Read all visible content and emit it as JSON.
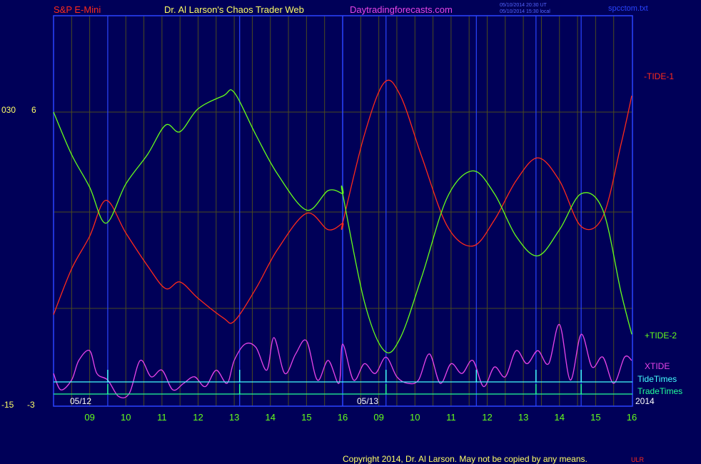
{
  "header": {
    "symbol": "S&P E-Mini",
    "site": "Dr. Al Larson's Chaos Trader Web",
    "url": "Daytradingforecasts.com",
    "ut_stamp": "05/10/2014 20:30 UT",
    "local_stamp": "05/10/2014 15:30 local",
    "file": "spcctom.txt"
  },
  "footer": {
    "copyright": "Copyright 2014, Dr. Al Larson. May not be copied by any means.",
    "mark": "ULR"
  },
  "colors": {
    "background": "#000058",
    "frame": "#2a44ff",
    "tide1": "#ff2a1a",
    "tide2": "#66ff1a",
    "xtide": "#e844e8",
    "tide_times": "#44ffff",
    "trade_times": "#22ff99"
  },
  "chart_data": {
    "type": "line",
    "x_unit": "hour",
    "x_range": [
      8,
      16
    ],
    "day_labels": [
      "05/12",
      "05/13"
    ],
    "year_label": "2014",
    "hour_ticks": [
      {
        "day": "05/12",
        "labels": [
          "09",
          "10",
          "11",
          "12",
          "13",
          "14",
          "15",
          "16"
        ]
      },
      {
        "day": "05/13",
        "labels": [
          "09",
          "10",
          "11",
          "12",
          "13",
          "14",
          "15",
          "16"
        ]
      }
    ],
    "left_axis": {
      "top_label_a": "030",
      "top_label_b": "6",
      "bottom_label_a": "-15",
      "bottom_label_b": "-3"
    },
    "ylim": [
      -3,
      6
    ],
    "series": [
      {
        "name": "-TIDE-1",
        "values": [
          {
            "day": "05/12",
            "x": 8.0,
            "y": -0.2
          },
          {
            "day": "05/12",
            "x": 8.5,
            "y": 1.2
          },
          {
            "day": "05/12",
            "x": 9.0,
            "y": 2.2
          },
          {
            "day": "05/12",
            "x": 9.45,
            "y": 3.3
          },
          {
            "day": "05/12",
            "x": 10.0,
            "y": 2.3
          },
          {
            "day": "05/12",
            "x": 10.6,
            "y": 1.3
          },
          {
            "day": "05/12",
            "x": 11.1,
            "y": 0.6
          },
          {
            "day": "05/12",
            "x": 11.5,
            "y": 0.8
          },
          {
            "day": "05/12",
            "x": 12.0,
            "y": 0.3
          },
          {
            "day": "05/12",
            "x": 12.7,
            "y": -0.3
          },
          {
            "day": "05/12",
            "x": 13.0,
            "y": -0.4
          },
          {
            "day": "05/12",
            "x": 13.6,
            "y": 0.6
          },
          {
            "day": "05/12",
            "x": 14.2,
            "y": 1.8
          },
          {
            "day": "05/12",
            "x": 15.0,
            "y": 2.9
          },
          {
            "day": "05/12",
            "x": 15.6,
            "y": 2.4
          },
          {
            "day": "05/12",
            "x": 16.0,
            "y": 2.6
          },
          {
            "day": "05/13",
            "x": 8.0,
            "y": 2.6
          },
          {
            "day": "05/13",
            "x": 8.6,
            "y": 5.3
          },
          {
            "day": "05/13",
            "x": 9.15,
            "y": 6.9
          },
          {
            "day": "05/13",
            "x": 9.6,
            "y": 6.5
          },
          {
            "day": "05/13",
            "x": 10.2,
            "y": 4.6
          },
          {
            "day": "05/13",
            "x": 10.9,
            "y": 2.5
          },
          {
            "day": "05/13",
            "x": 11.6,
            "y": 1.9
          },
          {
            "day": "05/13",
            "x": 12.2,
            "y": 2.7
          },
          {
            "day": "05/13",
            "x": 12.8,
            "y": 3.9
          },
          {
            "day": "05/13",
            "x": 13.4,
            "y": 4.6
          },
          {
            "day": "05/13",
            "x": 14.0,
            "y": 3.9
          },
          {
            "day": "05/13",
            "x": 14.6,
            "y": 2.5
          },
          {
            "day": "05/13",
            "x": 15.2,
            "y": 2.8
          },
          {
            "day": "05/13",
            "x": 15.7,
            "y": 5.0
          },
          {
            "day": "05/13",
            "x": 16.0,
            "y": 6.5
          }
        ]
      },
      {
        "name": "+TIDE-2",
        "values": [
          {
            "day": "05/12",
            "x": 8.0,
            "y": 6.0
          },
          {
            "day": "05/12",
            "x": 8.5,
            "y": 4.7
          },
          {
            "day": "05/12",
            "x": 9.0,
            "y": 3.7
          },
          {
            "day": "05/12",
            "x": 9.45,
            "y": 2.6
          },
          {
            "day": "05/12",
            "x": 10.0,
            "y": 3.8
          },
          {
            "day": "05/12",
            "x": 10.6,
            "y": 4.7
          },
          {
            "day": "05/12",
            "x": 11.1,
            "y": 5.6
          },
          {
            "day": "05/12",
            "x": 11.5,
            "y": 5.4
          },
          {
            "day": "05/12",
            "x": 12.0,
            "y": 6.1
          },
          {
            "day": "05/12",
            "x": 12.7,
            "y": 6.5
          },
          {
            "day": "05/12",
            "x": 13.0,
            "y": 6.6
          },
          {
            "day": "05/12",
            "x": 13.6,
            "y": 5.3
          },
          {
            "day": "05/12",
            "x": 14.2,
            "y": 4.1
          },
          {
            "day": "05/12",
            "x": 15.0,
            "y": 3.0
          },
          {
            "day": "05/12",
            "x": 15.6,
            "y": 3.6
          },
          {
            "day": "05/12",
            "x": 16.0,
            "y": 3.5
          },
          {
            "day": "05/13",
            "x": 8.0,
            "y": 3.5
          },
          {
            "day": "05/13",
            "x": 8.6,
            "y": 0.2
          },
          {
            "day": "05/13",
            "x": 9.15,
            "y": -1.3
          },
          {
            "day": "05/13",
            "x": 9.6,
            "y": -0.9
          },
          {
            "day": "05/13",
            "x": 10.2,
            "y": 1.0
          },
          {
            "day": "05/13",
            "x": 10.9,
            "y": 3.4
          },
          {
            "day": "05/13",
            "x": 11.6,
            "y": 4.2
          },
          {
            "day": "05/13",
            "x": 12.2,
            "y": 3.5
          },
          {
            "day": "05/13",
            "x": 12.8,
            "y": 2.2
          },
          {
            "day": "05/13",
            "x": 13.4,
            "y": 1.6
          },
          {
            "day": "05/13",
            "x": 14.0,
            "y": 2.4
          },
          {
            "day": "05/13",
            "x": 14.6,
            "y": 3.5
          },
          {
            "day": "05/13",
            "x": 15.2,
            "y": 3.0
          },
          {
            "day": "05/13",
            "x": 15.7,
            "y": 0.5
          },
          {
            "day": "05/13",
            "x": 16.0,
            "y": -0.8
          }
        ]
      },
      {
        "name": "XTIDE",
        "values": [
          {
            "day": "05/12",
            "x": 8.0,
            "y": -2.0
          },
          {
            "day": "05/12",
            "x": 8.2,
            "y": -2.5
          },
          {
            "day": "05/12",
            "x": 8.5,
            "y": -2.2
          },
          {
            "day": "05/12",
            "x": 8.7,
            "y": -1.6
          },
          {
            "day": "05/12",
            "x": 9.0,
            "y": -1.3
          },
          {
            "day": "05/12",
            "x": 9.2,
            "y": -2.0
          },
          {
            "day": "05/12",
            "x": 9.5,
            "y": -2.2
          },
          {
            "day": "05/12",
            "x": 9.8,
            "y": -2.7
          },
          {
            "day": "05/12",
            "x": 10.1,
            "y": -2.6
          },
          {
            "day": "05/12",
            "x": 10.4,
            "y": -1.6
          },
          {
            "day": "05/12",
            "x": 10.7,
            "y": -2.1
          },
          {
            "day": "05/12",
            "x": 11.0,
            "y": -1.9
          },
          {
            "day": "05/12",
            "x": 11.3,
            "y": -2.5
          },
          {
            "day": "05/12",
            "x": 11.6,
            "y": -2.3
          },
          {
            "day": "05/12",
            "x": 11.9,
            "y": -2.1
          },
          {
            "day": "05/12",
            "x": 12.2,
            "y": -2.4
          },
          {
            "day": "05/12",
            "x": 12.5,
            "y": -1.9
          },
          {
            "day": "05/12",
            "x": 12.8,
            "y": -2.3
          },
          {
            "day": "05/12",
            "x": 13.0,
            "y": -1.6
          },
          {
            "day": "05/12",
            "x": 13.3,
            "y": -1.1
          },
          {
            "day": "05/12",
            "x": 13.6,
            "y": -1.2
          },
          {
            "day": "05/12",
            "x": 13.9,
            "y": -1.9
          },
          {
            "day": "05/12",
            "x": 14.1,
            "y": -0.9
          },
          {
            "day": "05/12",
            "x": 14.4,
            "y": -2.0
          },
          {
            "day": "05/12",
            "x": 14.7,
            "y": -1.4
          },
          {
            "day": "05/12",
            "x": 15.0,
            "y": -1.0
          },
          {
            "day": "05/12",
            "x": 15.3,
            "y": -2.2
          },
          {
            "day": "05/12",
            "x": 15.6,
            "y": -1.6
          },
          {
            "day": "05/12",
            "x": 15.9,
            "y": -2.3
          },
          {
            "day": "05/13",
            "x": 8.0,
            "y": -1.1
          },
          {
            "day": "05/13",
            "x": 8.3,
            "y": -2.2
          },
          {
            "day": "05/13",
            "x": 8.6,
            "y": -1.7
          },
          {
            "day": "05/13",
            "x": 8.9,
            "y": -2.0
          },
          {
            "day": "05/13",
            "x": 9.2,
            "y": -1.5
          },
          {
            "day": "05/13",
            "x": 9.5,
            "y": -2.1
          },
          {
            "day": "05/13",
            "x": 9.8,
            "y": -2.3
          },
          {
            "day": "05/13",
            "x": 10.1,
            "y": -2.2
          },
          {
            "day": "05/13",
            "x": 10.4,
            "y": -1.4
          },
          {
            "day": "05/13",
            "x": 10.7,
            "y": -2.3
          },
          {
            "day": "05/13",
            "x": 11.0,
            "y": -1.7
          },
          {
            "day": "05/13",
            "x": 11.3,
            "y": -2.0
          },
          {
            "day": "05/13",
            "x": 11.6,
            "y": -1.6
          },
          {
            "day": "05/13",
            "x": 11.9,
            "y": -2.4
          },
          {
            "day": "05/13",
            "x": 12.2,
            "y": -1.8
          },
          {
            "day": "05/13",
            "x": 12.5,
            "y": -2.1
          },
          {
            "day": "05/13",
            "x": 12.8,
            "y": -1.3
          },
          {
            "day": "05/13",
            "x": 13.1,
            "y": -1.7
          },
          {
            "day": "05/13",
            "x": 13.4,
            "y": -1.3
          },
          {
            "day": "05/13",
            "x": 13.7,
            "y": -1.7
          },
          {
            "day": "05/13",
            "x": 14.0,
            "y": -0.5
          },
          {
            "day": "05/13",
            "x": 14.3,
            "y": -2.2
          },
          {
            "day": "05/13",
            "x": 14.6,
            "y": -0.8
          },
          {
            "day": "05/13",
            "x": 14.9,
            "y": -1.8
          },
          {
            "day": "05/13",
            "x": 15.2,
            "y": -1.5
          },
          {
            "day": "05/13",
            "x": 15.5,
            "y": -2.3
          },
          {
            "day": "05/13",
            "x": 15.8,
            "y": -1.5
          },
          {
            "day": "05/13",
            "x": 16.0,
            "y": -1.6
          }
        ]
      },
      {
        "name": "TideTimes",
        "values": [
          {
            "day": "05/12",
            "x": 9.5
          },
          {
            "day": "05/12",
            "x": 13.15
          },
          {
            "day": "05/13",
            "x": 9.2
          },
          {
            "day": "05/13",
            "x": 11.7
          },
          {
            "day": "05/13",
            "x": 13.35
          },
          {
            "day": "05/13",
            "x": 14.6
          }
        ]
      },
      {
        "name": "TradeTimes",
        "values": [
          {
            "day": "05/12",
            "x": 9.5
          },
          {
            "day": "05/12",
            "x": 13.15
          },
          {
            "day": "05/13",
            "x": 9.2
          },
          {
            "day": "05/13",
            "x": 13.35
          },
          {
            "day": "05/13",
            "x": 14.6
          }
        ]
      }
    ]
  }
}
